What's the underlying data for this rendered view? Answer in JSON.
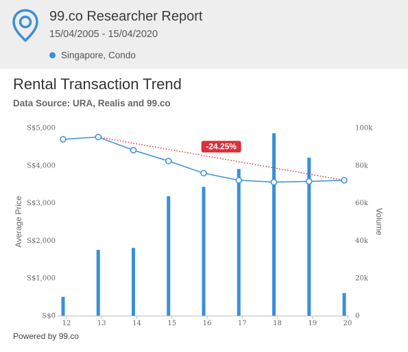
{
  "header": {
    "title": "99.co Researcher Report",
    "date_range": "15/04/2005 - 15/04/2020",
    "filter": "Singapore, Condo",
    "filter_color": "#3a8fd8",
    "logo_icon": "location-pin-icon",
    "logo_color": "#3a8fd8"
  },
  "chart": {
    "title": "Rental Transaction Trend",
    "subtitle": "Data Source: URA, Realis and 99.co"
  },
  "footer": {
    "text": "Powered by 99.co"
  },
  "chart_data": {
    "type": "bar",
    "categories": [
      "12",
      "13",
      "14",
      "15",
      "16",
      "17",
      "18",
      "19",
      "20"
    ],
    "series": [
      {
        "type": "bar",
        "axis": "right",
        "color": "#3a8fd8",
        "values": [
          10000,
          35000,
          36000,
          63500,
          68500,
          78000,
          97000,
          84000,
          12000
        ]
      },
      {
        "type": "line",
        "axis": "left",
        "color": "#3a8fd8",
        "values": [
          4690,
          4750,
          4400,
          4110,
          3790,
          3600,
          3550,
          3570,
          3600
        ]
      }
    ],
    "trend": {
      "from_index": 1,
      "to_index": 8,
      "label": "-24.25%",
      "color": "#d9303a",
      "style": "dotted"
    },
    "y_left": {
      "label": "Average Price",
      "min": 0,
      "max": 5000,
      "ticks": [
        0,
        1000,
        2000,
        3000,
        4000,
        5000
      ],
      "tick_labels": [
        "S$0",
        "S$1,000",
        "S$2,000",
        "S$3,000",
        "S$4,000",
        "S$5,000"
      ]
    },
    "y_right": {
      "label": "Volume",
      "min": 0,
      "max": 100000,
      "ticks": [
        0,
        20000,
        40000,
        60000,
        80000,
        100000
      ],
      "tick_labels": [
        "0",
        "20k",
        "40k",
        "60k",
        "80k",
        "100k"
      ]
    },
    "grid": "none",
    "legend": "none"
  }
}
